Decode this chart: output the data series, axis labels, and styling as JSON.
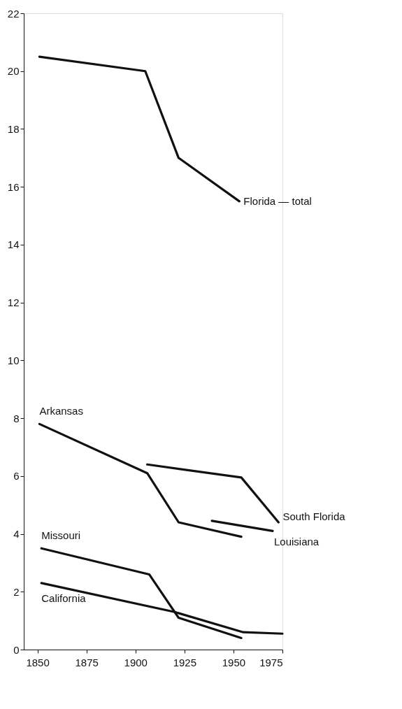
{
  "chart_data": {
    "type": "line",
    "xlim": [
      1843,
      1975
    ],
    "xticks": [
      1850,
      1875,
      1900,
      1925,
      1950,
      1975
    ],
    "ylim": [
      0,
      22
    ],
    "yticks": [
      0,
      2,
      4,
      6,
      8,
      10,
      12,
      14,
      16,
      18,
      20,
      22
    ],
    "grid": false,
    "line_style": "solid",
    "marker": "none",
    "series": [
      {
        "name": "Florida — total",
        "color": "#111111",
        "x": [
          1851,
          1905,
          1922,
          1953
        ],
        "values": [
          20.5,
          20.0,
          17.0,
          15.5
        ]
      },
      {
        "name": "Arkansas",
        "color": "#111111",
        "x": [
          1851,
          1906,
          1922,
          1954
        ],
        "values": [
          7.8,
          6.1,
          4.4,
          3.9
        ]
      },
      {
        "name": "South Florida",
        "color": "#111111",
        "x": [
          1906,
          1954,
          1973
        ],
        "values": [
          6.4,
          5.95,
          4.4
        ]
      },
      {
        "name": "Louisiana",
        "color": "#111111",
        "x": [
          1939,
          1970
        ],
        "values": [
          4.45,
          4.1
        ]
      },
      {
        "name": "Missouri",
        "color": "#111111",
        "x": [
          1852,
          1907,
          1922,
          1954
        ],
        "values": [
          3.5,
          2.6,
          1.1,
          0.4
        ]
      },
      {
        "name": "California",
        "color": "#111111",
        "x": [
          1852,
          1920,
          1955,
          1975
        ],
        "values": [
          2.3,
          1.3,
          0.6,
          0.55
        ]
      }
    ]
  }
}
